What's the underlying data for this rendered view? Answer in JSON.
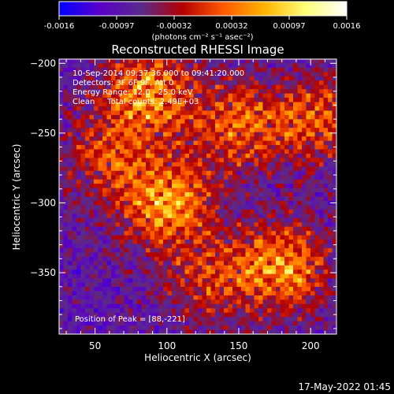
{
  "chart_data": {
    "type": "heatmap",
    "title": "Reconstructed RHESSI Image",
    "xlabel": "Heliocentric X (arcsec)",
    "ylabel": "Heliocentric Y (arcsec)",
    "xlim": [
      25,
      218
    ],
    "ylim": [
      -394,
      -197
    ],
    "x_ticks": [
      50,
      100,
      150,
      200
    ],
    "y_ticks": [
      -200,
      -250,
      -300,
      -350
    ],
    "colorbar": {
      "ticks": [
        "-0.0016",
        "-0.00097",
        "-0.00032",
        "0.00032",
        "0.00097",
        "0.0016"
      ],
      "range": [
        -0.0016,
        0.0016
      ],
      "units_line": "(photons cm⁻² s⁻¹ asec⁻²)",
      "stops": [
        "#0000ff",
        "#5a00c8",
        "#5a2a8c",
        "#b40000",
        "#ff5a00",
        "#ffb400",
        "#ffff78",
        "#ffffff"
      ]
    },
    "annotations": [
      "10-Sep-2014 09:37:36.000 to 09:41:20.000",
      "Detectors: 3F 6F 9F, Att 0",
      "Energy Range: 12.0 - 25.0 keV",
      "Clean     Total counts: 2.49E+03"
    ],
    "peak_text": "Position of Peak = [88,-221]",
    "sources": [
      {
        "x": 100,
        "y": -300,
        "amp": 1.0
      },
      {
        "x": 88,
        "y": -221,
        "amp": 0.95
      },
      {
        "x": 180,
        "y": -345,
        "amp": 0.95
      },
      {
        "x": 150,
        "y": -245,
        "amp": 0.75
      },
      {
        "x": 205,
        "y": -240,
        "amp": 0.7
      },
      {
        "x": 60,
        "y": -265,
        "amp": 0.6
      },
      {
        "x": 130,
        "y": -355,
        "amp": 0.55
      }
    ],
    "grid": false
  },
  "footer": {
    "timestamp": "17-May-2022 01:45"
  }
}
